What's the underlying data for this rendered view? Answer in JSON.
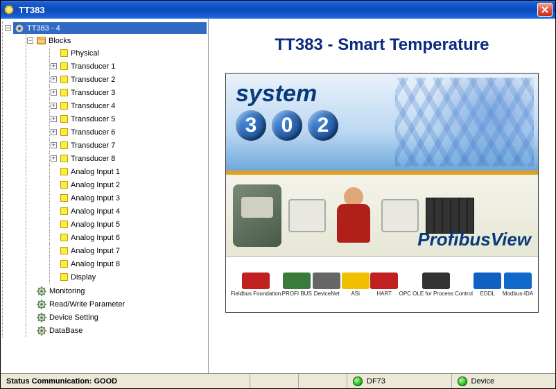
{
  "window": {
    "title": "TT383"
  },
  "tree": {
    "root": {
      "label": "TT383 - 4",
      "selected": true,
      "items": [
        {
          "label": "Blocks",
          "icon": "folder",
          "expander": "minus",
          "children": [
            {
              "label": "Physical",
              "icon": "yellow",
              "expander": "none"
            },
            {
              "label": "Transducer 1",
              "icon": "yellow",
              "expander": "plus"
            },
            {
              "label": "Transducer 2",
              "icon": "yellow",
              "expander": "plus"
            },
            {
              "label": "Transducer 3",
              "icon": "yellow",
              "expander": "plus"
            },
            {
              "label": "Transducer 4",
              "icon": "yellow",
              "expander": "plus"
            },
            {
              "label": "Transducer 5",
              "icon": "yellow",
              "expander": "plus"
            },
            {
              "label": "Transducer 6",
              "icon": "yellow",
              "expander": "plus"
            },
            {
              "label": "Transducer 7",
              "icon": "yellow",
              "expander": "plus"
            },
            {
              "label": "Transducer 8",
              "icon": "yellow",
              "expander": "plus"
            },
            {
              "label": "Analog Input 1",
              "icon": "yellow",
              "expander": "none"
            },
            {
              "label": "Analog Input 2",
              "icon": "yellow",
              "expander": "none"
            },
            {
              "label": "Analog Input 3",
              "icon": "yellow",
              "expander": "none"
            },
            {
              "label": "Analog Input 4",
              "icon": "yellow",
              "expander": "none"
            },
            {
              "label": "Analog Input 5",
              "icon": "yellow",
              "expander": "none"
            },
            {
              "label": "Analog Input 6",
              "icon": "yellow",
              "expander": "none"
            },
            {
              "label": "Analog Input 7",
              "icon": "yellow",
              "expander": "none"
            },
            {
              "label": "Analog Input 8",
              "icon": "yellow",
              "expander": "none"
            },
            {
              "label": "Display",
              "icon": "yellow",
              "expander": "none"
            }
          ]
        },
        {
          "label": "Monitoring",
          "icon": "gear",
          "expander": "none"
        },
        {
          "label": "Read/Write Parameter",
          "icon": "gear",
          "expander": "none"
        },
        {
          "label": "Device Setting",
          "icon": "gear",
          "expander": "none"
        },
        {
          "label": "DataBase",
          "icon": "gear",
          "expander": "none"
        }
      ]
    }
  },
  "content": {
    "title": "TT383 - Smart Temperature",
    "splash": {
      "system_label": "system",
      "digits": [
        "3",
        "0",
        "2"
      ],
      "profibusview_label": "ProfibusView",
      "logos": [
        {
          "label": "Fieldbus Foundation",
          "color": "#c02020"
        },
        {
          "label": "PROFI BUS",
          "color": "#3a7a3a"
        },
        {
          "label": "DeviceNet",
          "color": "#666666"
        },
        {
          "label": "ASi",
          "color": "#f0c000"
        },
        {
          "label": "HART",
          "color": "#c02020"
        },
        {
          "label": "OPC OLE for Process Control",
          "color": "#333333"
        },
        {
          "label": "EDDL",
          "color": "#1060c0"
        },
        {
          "label": "Modbus-IDA",
          "color": "#1068c8"
        }
      ]
    }
  },
  "status": {
    "communication_label": "Status Communication: GOOD",
    "df_label": "DF73",
    "device_label": "Device"
  },
  "colors": {
    "titlebar_gradient_top": "#3b8af0",
    "titlebar_gradient_mid": "#0a4ab8",
    "selection": "#316ac5",
    "heading": "#0a2a80",
    "node_yellow": "#ffeb3b",
    "statusbar_bg": "#ece9d8",
    "led_green": "#2bc020"
  }
}
